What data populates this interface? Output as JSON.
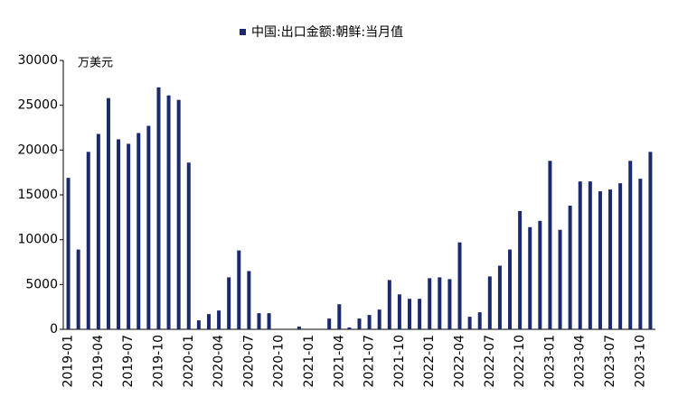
{
  "chart_data": {
    "type": "bar",
    "legend": "中国:出口金额:朝鲜:当月值",
    "y_axis_label": "万美元",
    "color": "#1b2a6e",
    "categories": [
      "2019-01",
      null,
      null,
      "2019-04",
      null,
      null,
      "2019-07",
      null,
      null,
      "2019-10",
      null,
      null,
      "2020-01",
      null,
      null,
      "2020-04",
      null,
      null,
      "2020-07",
      null,
      null,
      "2020-10",
      null,
      null,
      "2021-01",
      null,
      null,
      "2021-04",
      null,
      null,
      "2021-07",
      null,
      null,
      "2021-10",
      null,
      null,
      "2022-01",
      null,
      null,
      "2022-04",
      null,
      null,
      "2022-07",
      null,
      null,
      "2022-10",
      null,
      null,
      "2023-01",
      null,
      null,
      "2023-04",
      null,
      null,
      "2023-07",
      null,
      null,
      "2023-10",
      null
    ],
    "values": [
      16900,
      8900,
      19800,
      21800,
      25800,
      21200,
      20700,
      21900,
      22700,
      27000,
      26100,
      25600,
      18600,
      1000,
      1700,
      2100,
      5800,
      8800,
      6500,
      1800,
      1800,
      0,
      0,
      300,
      0,
      0,
      1200,
      2800,
      200,
      1200,
      1600,
      2200,
      5500,
      3900,
      3400,
      3400,
      5700,
      5800,
      5600,
      9700,
      1400,
      1900,
      5900,
      7100,
      8900,
      13200,
      11400,
      12100,
      18800,
      11100,
      13800,
      16500,
      16500,
      15400,
      15600,
      16300,
      18800,
      16800,
      19800
    ],
    "ylim": [
      0,
      30000
    ],
    "yticks": [
      0,
      5000,
      10000,
      15000,
      20000,
      25000,
      30000
    ],
    "grid": false
  }
}
